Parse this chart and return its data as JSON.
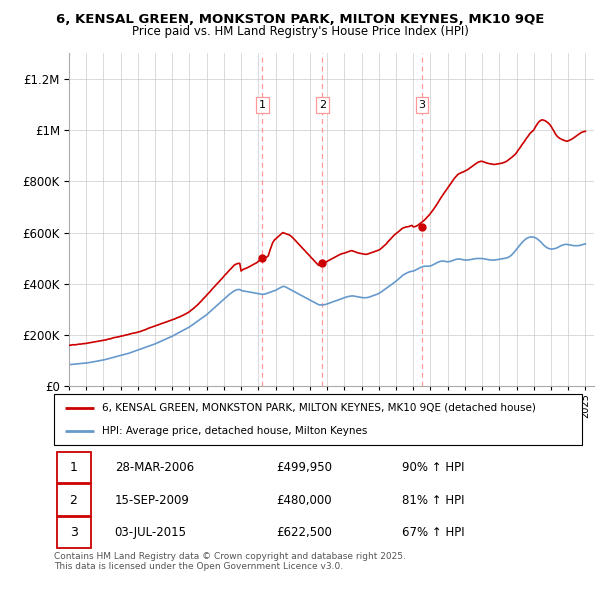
{
  "title": "6, KENSAL GREEN, MONKSTON PARK, MILTON KEYNES, MK10 9QE",
  "subtitle": "Price paid vs. HM Land Registry's House Price Index (HPI)",
  "red_line_label": "6, KENSAL GREEN, MONKSTON PARK, MILTON KEYNES, MK10 9QE (detached house)",
  "blue_line_label": "HPI: Average price, detached house, Milton Keynes",
  "transactions": [
    {
      "num": 1,
      "date_str": "28-MAR-2006",
      "date_x": 2006.23,
      "price": 499950,
      "pct": "90% ↑ HPI"
    },
    {
      "num": 2,
      "date_str": "15-SEP-2009",
      "date_x": 2009.71,
      "price": 480000,
      "pct": "81% ↑ HPI"
    },
    {
      "num": 3,
      "date_str": "03-JUL-2015",
      "date_x": 2015.5,
      "price": 622500,
      "pct": "67% ↑ HPI"
    }
  ],
  "footer": "Contains HM Land Registry data © Crown copyright and database right 2025.\nThis data is licensed under the Open Government Licence v3.0.",
  "red_color": "#cc0000",
  "blue_color": "#6699cc",
  "dashed_color": "#ff9999",
  "ylim": [
    0,
    1300000
  ],
  "xlim_start": 1995.0,
  "xlim_end": 2025.5,
  "red_x": [
    1995.0,
    1995.08,
    1995.17,
    1995.25,
    1995.33,
    1995.42,
    1995.5,
    1995.58,
    1995.67,
    1995.75,
    1995.83,
    1995.92,
    1996.0,
    1996.08,
    1996.17,
    1996.25,
    1996.33,
    1996.42,
    1996.5,
    1996.58,
    1996.67,
    1996.75,
    1996.83,
    1996.92,
    1997.0,
    1997.08,
    1997.17,
    1997.25,
    1997.33,
    1997.42,
    1997.5,
    1997.58,
    1997.67,
    1997.75,
    1997.83,
    1997.92,
    1998.0,
    1998.08,
    1998.17,
    1998.25,
    1998.33,
    1998.42,
    1998.5,
    1998.58,
    1998.67,
    1998.75,
    1998.83,
    1998.92,
    1999.0,
    1999.08,
    1999.17,
    1999.25,
    1999.33,
    1999.42,
    1999.5,
    1999.58,
    1999.67,
    1999.75,
    1999.83,
    1999.92,
    2000.0,
    2000.08,
    2000.17,
    2000.25,
    2000.33,
    2000.42,
    2000.5,
    2000.58,
    2000.67,
    2000.75,
    2000.83,
    2000.92,
    2001.0,
    2001.08,
    2001.17,
    2001.25,
    2001.33,
    2001.42,
    2001.5,
    2001.58,
    2001.67,
    2001.75,
    2001.83,
    2001.92,
    2002.0,
    2002.08,
    2002.17,
    2002.25,
    2002.33,
    2002.42,
    2002.5,
    2002.58,
    2002.67,
    2002.75,
    2002.83,
    2002.92,
    2003.0,
    2003.08,
    2003.17,
    2003.25,
    2003.33,
    2003.42,
    2003.5,
    2003.58,
    2003.67,
    2003.75,
    2003.83,
    2003.92,
    2004.0,
    2004.08,
    2004.17,
    2004.25,
    2004.33,
    2004.42,
    2004.5,
    2004.58,
    2004.67,
    2004.75,
    2004.83,
    2004.92,
    2005.0,
    2005.08,
    2005.17,
    2005.25,
    2005.33,
    2005.42,
    2005.5,
    2005.58,
    2005.67,
    2005.75,
    2005.83,
    2005.92,
    2006.0,
    2006.08,
    2006.17,
    2006.23,
    2006.25,
    2006.33,
    2006.42,
    2006.5,
    2006.58,
    2006.67,
    2006.75,
    2006.83,
    2006.92,
    2007.0,
    2007.08,
    2007.17,
    2007.25,
    2007.33,
    2007.42,
    2007.5,
    2007.58,
    2007.67,
    2007.75,
    2007.83,
    2007.92,
    2008.0,
    2008.08,
    2008.17,
    2008.25,
    2008.33,
    2008.42,
    2008.5,
    2008.58,
    2008.67,
    2008.75,
    2008.83,
    2008.92,
    2009.0,
    2009.08,
    2009.17,
    2009.25,
    2009.33,
    2009.42,
    2009.5,
    2009.58,
    2009.67,
    2009.71,
    2009.75,
    2009.83,
    2009.92,
    2010.0,
    2010.08,
    2010.17,
    2010.25,
    2010.33,
    2010.42,
    2010.5,
    2010.58,
    2010.67,
    2010.75,
    2010.83,
    2010.92,
    2011.0,
    2011.08,
    2011.17,
    2011.25,
    2011.33,
    2011.42,
    2011.5,
    2011.58,
    2011.67,
    2011.75,
    2011.83,
    2011.92,
    2012.0,
    2012.08,
    2012.17,
    2012.25,
    2012.33,
    2012.42,
    2012.5,
    2012.58,
    2012.67,
    2012.75,
    2012.83,
    2012.92,
    2013.0,
    2013.08,
    2013.17,
    2013.25,
    2013.33,
    2013.42,
    2013.5,
    2013.58,
    2013.67,
    2013.75,
    2013.83,
    2013.92,
    2014.0,
    2014.08,
    2014.17,
    2014.25,
    2014.33,
    2014.42,
    2014.5,
    2014.58,
    2014.67,
    2014.75,
    2014.83,
    2014.92,
    2015.0,
    2015.08,
    2015.17,
    2015.25,
    2015.33,
    2015.42,
    2015.5,
    2015.58,
    2015.67,
    2015.75,
    2015.83,
    2015.92,
    2016.0,
    2016.08,
    2016.17,
    2016.25,
    2016.33,
    2016.42,
    2016.5,
    2016.58,
    2016.67,
    2016.75,
    2016.83,
    2016.92,
    2017.0,
    2017.08,
    2017.17,
    2017.25,
    2017.33,
    2017.42,
    2017.5,
    2017.58,
    2017.67,
    2017.75,
    2017.83,
    2017.92,
    2018.0,
    2018.08,
    2018.17,
    2018.25,
    2018.33,
    2018.42,
    2018.5,
    2018.58,
    2018.67,
    2018.75,
    2018.83,
    2018.92,
    2019.0,
    2019.08,
    2019.17,
    2019.25,
    2019.33,
    2019.42,
    2019.5,
    2019.58,
    2019.67,
    2019.75,
    2019.83,
    2019.92,
    2020.0,
    2020.08,
    2020.17,
    2020.25,
    2020.33,
    2020.42,
    2020.5,
    2020.58,
    2020.67,
    2020.75,
    2020.83,
    2020.92,
    2021.0,
    2021.08,
    2021.17,
    2021.25,
    2021.33,
    2021.42,
    2021.5,
    2021.58,
    2021.67,
    2021.75,
    2021.83,
    2021.92,
    2022.0,
    2022.08,
    2022.17,
    2022.25,
    2022.33,
    2022.42,
    2022.5,
    2022.58,
    2022.67,
    2022.75,
    2022.83,
    2022.92,
    2023.0,
    2023.08,
    2023.17,
    2023.25,
    2023.33,
    2023.42,
    2023.5,
    2023.58,
    2023.67,
    2023.75,
    2023.83,
    2023.92,
    2024.0,
    2024.08,
    2024.17,
    2024.25,
    2024.33,
    2024.42,
    2024.5,
    2024.58,
    2024.67,
    2024.75,
    2024.83,
    2024.92,
    2025.0
  ],
  "red_y": [
    160000,
    161000,
    162000,
    163000,
    162000,
    163000,
    164000,
    165000,
    165000,
    166000,
    167000,
    167000,
    168000,
    169000,
    170000,
    171000,
    172000,
    173000,
    174000,
    175000,
    176000,
    177000,
    178000,
    179000,
    180000,
    181000,
    182000,
    184000,
    185000,
    186000,
    188000,
    190000,
    191000,
    192000,
    193000,
    194000,
    196000,
    197000,
    198000,
    200000,
    201000,
    202000,
    204000,
    205000,
    207000,
    208000,
    209000,
    210000,
    212000,
    213000,
    215000,
    217000,
    219000,
    221000,
    223000,
    226000,
    228000,
    230000,
    232000,
    234000,
    236000,
    238000,
    240000,
    242000,
    244000,
    246000,
    248000,
    250000,
    252000,
    254000,
    256000,
    258000,
    260000,
    262000,
    264000,
    267000,
    269000,
    271000,
    274000,
    276000,
    279000,
    282000,
    285000,
    288000,
    292000,
    296000,
    300000,
    305000,
    310000,
    315000,
    320000,
    326000,
    332000,
    338000,
    344000,
    350000,
    356000,
    362000,
    368000,
    374000,
    381000,
    387000,
    393000,
    399000,
    405000,
    411000,
    417000,
    423000,
    430000,
    436000,
    442000,
    448000,
    454000,
    460000,
    466000,
    472000,
    476000,
    478000,
    480000,
    480000,
    450000,
    455000,
    458000,
    460000,
    462000,
    465000,
    468000,
    471000,
    474000,
    477000,
    480000,
    483000,
    488000,
    492000,
    496000,
    499950,
    499950,
    501000,
    503000,
    505000,
    510000,
    530000,
    545000,
    560000,
    570000,
    575000,
    580000,
    585000,
    590000,
    595000,
    600000,
    598000,
    596000,
    594000,
    592000,
    590000,
    585000,
    580000,
    574000,
    568000,
    562000,
    556000,
    550000,
    544000,
    538000,
    532000,
    526000,
    520000,
    514000,
    508000,
    502000,
    496000,
    490000,
    484000,
    478000,
    472000,
    480000,
    480000,
    480000,
    481000,
    483000,
    485000,
    488000,
    491000,
    494000,
    497000,
    500000,
    503000,
    506000,
    509000,
    512000,
    515000,
    517000,
    519000,
    520000,
    522000,
    524000,
    526000,
    528000,
    530000,
    528000,
    526000,
    524000,
    522000,
    520000,
    519000,
    518000,
    517000,
    516000,
    515000,
    516000,
    518000,
    520000,
    522000,
    524000,
    526000,
    528000,
    530000,
    532000,
    535000,
    540000,
    545000,
    550000,
    555000,
    562000,
    568000,
    574000,
    580000,
    586000,
    592000,
    596000,
    600000,
    605000,
    610000,
    615000,
    618000,
    620000,
    622000,
    622500,
    624000,
    626000,
    628000,
    622500,
    623000,
    625000,
    628000,
    632000,
    636000,
    640000,
    645000,
    650000,
    656000,
    662000,
    668000,
    675000,
    682000,
    690000,
    698000,
    706000,
    715000,
    724000,
    733000,
    742000,
    750000,
    758000,
    766000,
    774000,
    782000,
    790000,
    798000,
    806000,
    814000,
    820000,
    826000,
    830000,
    832000,
    835000,
    837000,
    840000,
    843000,
    846000,
    850000,
    854000,
    858000,
    862000,
    866000,
    870000,
    874000,
    876000,
    878000,
    878000,
    876000,
    874000,
    872000,
    870000,
    869000,
    868000,
    867000,
    866000,
    866000,
    867000,
    868000,
    869000,
    870000,
    871000,
    873000,
    875000,
    878000,
    882000,
    886000,
    890000,
    895000,
    900000,
    905000,
    912000,
    920000,
    928000,
    936000,
    944000,
    952000,
    960000,
    968000,
    976000,
    984000,
    990000,
    995000,
    1000000,
    1010000,
    1020000,
    1028000,
    1034000,
    1038000,
    1040000,
    1038000,
    1036000,
    1032000,
    1028000,
    1022000,
    1015000,
    1006000,
    996000,
    986000,
    978000,
    972000,
    968000,
    965000,
    962000,
    960000,
    958000,
    956000,
    958000,
    960000,
    963000,
    966000,
    970000,
    974000,
    978000,
    982000,
    986000,
    990000,
    992000,
    994000,
    995000
  ],
  "blue_x": [
    1995.0,
    1995.08,
    1995.17,
    1995.25,
    1995.33,
    1995.42,
    1995.5,
    1995.58,
    1995.67,
    1995.75,
    1995.83,
    1995.92,
    1996.0,
    1996.08,
    1996.17,
    1996.25,
    1996.33,
    1996.42,
    1996.5,
    1996.58,
    1996.67,
    1996.75,
    1996.83,
    1996.92,
    1997.0,
    1997.08,
    1997.17,
    1997.25,
    1997.33,
    1997.42,
    1997.5,
    1997.58,
    1997.67,
    1997.75,
    1997.83,
    1997.92,
    1998.0,
    1998.08,
    1998.17,
    1998.25,
    1998.33,
    1998.42,
    1998.5,
    1998.58,
    1998.67,
    1998.75,
    1998.83,
    1998.92,
    1999.0,
    1999.08,
    1999.17,
    1999.25,
    1999.33,
    1999.42,
    1999.5,
    1999.58,
    1999.67,
    1999.75,
    1999.83,
    1999.92,
    2000.0,
    2000.08,
    2000.17,
    2000.25,
    2000.33,
    2000.42,
    2000.5,
    2000.58,
    2000.67,
    2000.75,
    2000.83,
    2000.92,
    2001.0,
    2001.08,
    2001.17,
    2001.25,
    2001.33,
    2001.42,
    2001.5,
    2001.58,
    2001.67,
    2001.75,
    2001.83,
    2001.92,
    2002.0,
    2002.08,
    2002.17,
    2002.25,
    2002.33,
    2002.42,
    2002.5,
    2002.58,
    2002.67,
    2002.75,
    2002.83,
    2002.92,
    2003.0,
    2003.08,
    2003.17,
    2003.25,
    2003.33,
    2003.42,
    2003.5,
    2003.58,
    2003.67,
    2003.75,
    2003.83,
    2003.92,
    2004.0,
    2004.08,
    2004.17,
    2004.25,
    2004.33,
    2004.42,
    2004.5,
    2004.58,
    2004.67,
    2004.75,
    2004.83,
    2004.92,
    2005.0,
    2005.08,
    2005.17,
    2005.25,
    2005.33,
    2005.42,
    2005.5,
    2005.58,
    2005.67,
    2005.75,
    2005.83,
    2005.92,
    2006.0,
    2006.08,
    2006.17,
    2006.25,
    2006.33,
    2006.42,
    2006.5,
    2006.58,
    2006.67,
    2006.75,
    2006.83,
    2006.92,
    2007.0,
    2007.08,
    2007.17,
    2007.25,
    2007.33,
    2007.42,
    2007.5,
    2007.58,
    2007.67,
    2007.75,
    2007.83,
    2007.92,
    2008.0,
    2008.08,
    2008.17,
    2008.25,
    2008.33,
    2008.42,
    2008.5,
    2008.58,
    2008.67,
    2008.75,
    2008.83,
    2008.92,
    2009.0,
    2009.08,
    2009.17,
    2009.25,
    2009.33,
    2009.42,
    2009.5,
    2009.58,
    2009.67,
    2009.75,
    2009.83,
    2009.92,
    2010.0,
    2010.08,
    2010.17,
    2010.25,
    2010.33,
    2010.42,
    2010.5,
    2010.58,
    2010.67,
    2010.75,
    2010.83,
    2010.92,
    2011.0,
    2011.08,
    2011.17,
    2011.25,
    2011.33,
    2011.42,
    2011.5,
    2011.58,
    2011.67,
    2011.75,
    2011.83,
    2011.92,
    2012.0,
    2012.08,
    2012.17,
    2012.25,
    2012.33,
    2012.42,
    2012.5,
    2012.58,
    2012.67,
    2012.75,
    2012.83,
    2012.92,
    2013.0,
    2013.08,
    2013.17,
    2013.25,
    2013.33,
    2013.42,
    2013.5,
    2013.58,
    2013.67,
    2013.75,
    2013.83,
    2013.92,
    2014.0,
    2014.08,
    2014.17,
    2014.25,
    2014.33,
    2014.42,
    2014.5,
    2014.58,
    2014.67,
    2014.75,
    2014.83,
    2014.92,
    2015.0,
    2015.08,
    2015.17,
    2015.25,
    2015.33,
    2015.42,
    2015.5,
    2015.58,
    2015.67,
    2015.75,
    2015.83,
    2015.92,
    2016.0,
    2016.08,
    2016.17,
    2016.25,
    2016.33,
    2016.42,
    2016.5,
    2016.58,
    2016.67,
    2016.75,
    2016.83,
    2016.92,
    2017.0,
    2017.08,
    2017.17,
    2017.25,
    2017.33,
    2017.42,
    2017.5,
    2017.58,
    2017.67,
    2017.75,
    2017.83,
    2017.92,
    2018.0,
    2018.08,
    2018.17,
    2018.25,
    2018.33,
    2018.42,
    2018.5,
    2018.58,
    2018.67,
    2018.75,
    2018.83,
    2018.92,
    2019.0,
    2019.08,
    2019.17,
    2019.25,
    2019.33,
    2019.42,
    2019.5,
    2019.58,
    2019.67,
    2019.75,
    2019.83,
    2019.92,
    2020.0,
    2020.08,
    2020.17,
    2020.25,
    2020.33,
    2020.42,
    2020.5,
    2020.58,
    2020.67,
    2020.75,
    2020.83,
    2020.92,
    2021.0,
    2021.08,
    2021.17,
    2021.25,
    2021.33,
    2021.42,
    2021.5,
    2021.58,
    2021.67,
    2021.75,
    2021.83,
    2021.92,
    2022.0,
    2022.08,
    2022.17,
    2022.25,
    2022.33,
    2022.42,
    2022.5,
    2022.58,
    2022.67,
    2022.75,
    2022.83,
    2022.92,
    2023.0,
    2023.08,
    2023.17,
    2023.25,
    2023.33,
    2023.42,
    2023.5,
    2023.58,
    2023.67,
    2023.75,
    2023.83,
    2023.92,
    2024.0,
    2024.08,
    2024.17,
    2024.25,
    2024.33,
    2024.42,
    2024.5,
    2024.58,
    2024.67,
    2024.75,
    2024.83,
    2024.92,
    2025.0
  ],
  "blue_y": [
    85000,
    85500,
    86000,
    86500,
    87000,
    87500,
    88000,
    88500,
    89000,
    89500,
    90000,
    90500,
    91000,
    92000,
    93000,
    94000,
    95000,
    96000,
    97000,
    98000,
    99000,
    100000,
    101000,
    102000,
    103000,
    104500,
    106000,
    107500,
    109000,
    110500,
    112000,
    113500,
    115000,
    116500,
    118000,
    119500,
    121000,
    122500,
    124000,
    125500,
    127000,
    128500,
    130000,
    132000,
    134000,
    136000,
    138000,
    140000,
    142000,
    144000,
    146000,
    148000,
    150000,
    152000,
    154000,
    156000,
    158000,
    160000,
    162000,
    164000,
    166000,
    168500,
    171000,
    173500,
    176000,
    178500,
    181000,
    183500,
    186000,
    188500,
    191000,
    193500,
    196000,
    199000,
    202000,
    205000,
    208000,
    211000,
    214000,
    217000,
    220000,
    223000,
    226000,
    229000,
    232000,
    236000,
    240000,
    244000,
    248000,
    252000,
    256000,
    260000,
    264000,
    268000,
    272000,
    276000,
    280000,
    285000,
    290000,
    295000,
    300000,
    305000,
    310000,
    315000,
    320000,
    325000,
    330000,
    335000,
    340000,
    345000,
    350000,
    355000,
    360000,
    364000,
    368000,
    372000,
    375000,
    377000,
    378000,
    378000,
    375000,
    373000,
    372000,
    371000,
    370000,
    369000,
    368000,
    367000,
    366000,
    365000,
    364000,
    363000,
    362000,
    361000,
    360000,
    359000,
    360000,
    361000,
    363000,
    365000,
    367000,
    369000,
    371000,
    373000,
    375000,
    378000,
    381000,
    384000,
    387000,
    390000,
    390000,
    388000,
    385000,
    382000,
    379000,
    376000,
    373000,
    370000,
    367000,
    364000,
    361000,
    358000,
    355000,
    352000,
    349000,
    346000,
    343000,
    340000,
    337000,
    334000,
    331000,
    328000,
    325000,
    322000,
    319000,
    318000,
    318000,
    318000,
    319000,
    320000,
    322000,
    324000,
    326000,
    328000,
    330000,
    332000,
    334000,
    336000,
    338000,
    340000,
    342000,
    344000,
    346000,
    348000,
    350000,
    351000,
    352000,
    353000,
    353000,
    352000,
    351000,
    350000,
    349000,
    348000,
    347000,
    346000,
    346000,
    346000,
    347000,
    348000,
    350000,
    352000,
    354000,
    356000,
    358000,
    360000,
    363000,
    366000,
    370000,
    374000,
    378000,
    382000,
    386000,
    390000,
    394000,
    398000,
    402000,
    406000,
    410000,
    415000,
    420000,
    425000,
    430000,
    435000,
    438000,
    441000,
    444000,
    446000,
    448000,
    449000,
    450000,
    452000,
    455000,
    458000,
    461000,
    464000,
    466000,
    468000,
    469000,
    469000,
    469000,
    469000,
    470000,
    472000,
    475000,
    478000,
    481000,
    484000,
    486000,
    488000,
    489000,
    489000,
    488000,
    487000,
    486000,
    487000,
    488000,
    490000,
    492000,
    494000,
    496000,
    497000,
    497000,
    496000,
    495000,
    494000,
    493000,
    493000,
    493000,
    494000,
    495000,
    496000,
    497000,
    498000,
    499000,
    499000,
    499000,
    499000,
    499000,
    498000,
    497000,
    496000,
    495000,
    494000,
    493000,
    493000,
    493000,
    493000,
    494000,
    495000,
    496000,
    497000,
    498000,
    499000,
    500000,
    501000,
    503000,
    506000,
    510000,
    515000,
    521000,
    528000,
    535000,
    542000,
    549000,
    556000,
    562000,
    568000,
    573000,
    577000,
    580000,
    582000,
    583000,
    583000,
    582000,
    580000,
    577000,
    573000,
    568000,
    563000,
    557000,
    551000,
    546000,
    542000,
    539000,
    537000,
    536000,
    536000,
    537000,
    538000,
    540000,
    543000,
    546000,
    549000,
    551000,
    553000,
    554000,
    554000,
    553000,
    552000,
    551000,
    550000,
    549000,
    549000,
    549000,
    549000,
    550000,
    551000,
    553000,
    555000,
    556000
  ]
}
